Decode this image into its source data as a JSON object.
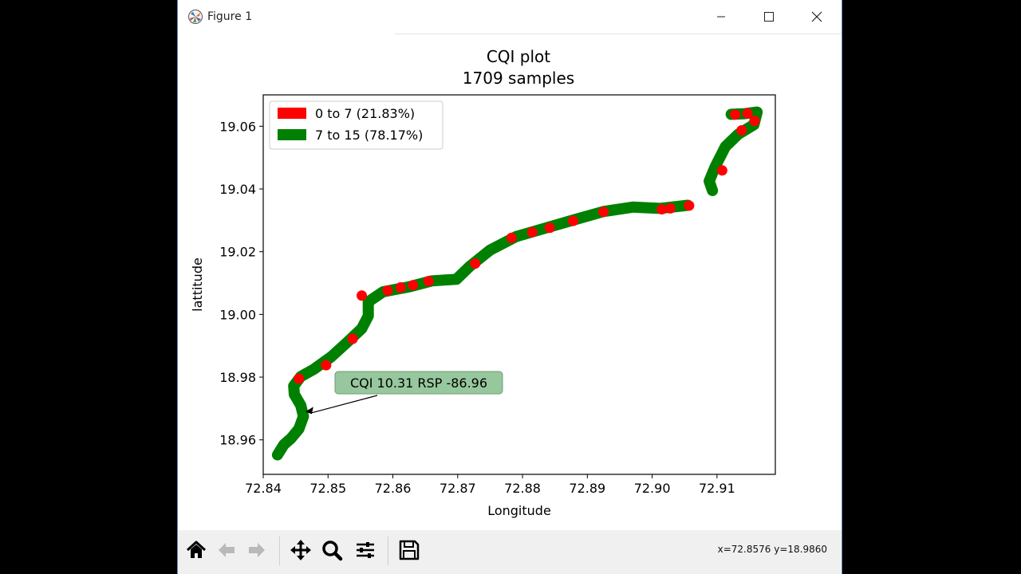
{
  "window": {
    "title": "Figure 1"
  },
  "toolbar": {
    "buttons": [
      {
        "icon": "home-icon"
      },
      {
        "icon": "back-arrow-icon"
      },
      {
        "icon": "forward-arrow-icon"
      },
      {
        "icon": "pan-icon"
      },
      {
        "icon": "zoom-icon"
      },
      {
        "icon": "configure-subplots-icon"
      },
      {
        "icon": "save-icon"
      }
    ],
    "coords": "x=72.8576 y=18.9860"
  },
  "colors": {
    "low": "#ff0000",
    "high": "#008000",
    "annotation_bg": "#97c79c"
  },
  "chart_data": {
    "type": "scatter",
    "title": "CQI plot",
    "subtitle": "1709 samples",
    "xlabel": "Longitude",
    "ylabel": "lattitude",
    "xlim": [
      72.84,
      72.919
    ],
    "ylim": [
      18.949,
      19.07
    ],
    "xticks": [
      "72.84",
      "72.85",
      "72.86",
      "72.87",
      "72.88",
      "72.89",
      "72.90",
      "72.91"
    ],
    "yticks": [
      "18.96",
      "18.98",
      "19.00",
      "19.02",
      "19.04",
      "19.06"
    ],
    "grid": false,
    "legend_position": "top-left",
    "legend": [
      {
        "label": "0 to 7 (21.83%)",
        "color": "#ff0000"
      },
      {
        "label": "7 to 15 (78.17%)",
        "color": "#008000"
      }
    ],
    "annotation": {
      "text": "CQI 10.31 RSP -86.96",
      "target": [
        72.8465,
        18.969
      ]
    },
    "track_segments": [
      [
        [
          72.8422,
          18.9552
        ],
        [
          72.8432,
          18.9585
        ],
        [
          72.8443,
          18.9605
        ],
        [
          72.8455,
          18.9635
        ],
        [
          72.8462,
          18.9675
        ],
        [
          72.8458,
          18.971
        ],
        [
          72.8448,
          18.9745
        ],
        [
          72.8447,
          18.9772
        ],
        [
          72.8458,
          18.9802
        ],
        [
          72.8478,
          18.9825
        ],
        [
          72.8505,
          18.9865
        ],
        [
          72.853,
          18.9912
        ],
        [
          72.8552,
          18.9955
        ],
        [
          72.8562,
          18.9995
        ],
        [
          72.8562,
          19.004
        ],
        [
          72.8585,
          19.0072
        ],
        [
          72.8625,
          19.0088
        ],
        [
          72.866,
          19.0107
        ],
        [
          72.8698,
          19.0112
        ],
        [
          72.8718,
          19.0152
        ],
        [
          72.875,
          19.0205
        ],
        [
          72.879,
          19.0248
        ],
        [
          72.8835,
          19.0275
        ],
        [
          72.888,
          19.0302
        ],
        [
          72.8925,
          19.0328
        ],
        [
          72.897,
          19.0342
        ],
        [
          72.9012,
          19.0338
        ],
        [
          72.9055,
          19.0348
        ]
      ],
      [
        [
          72.9093,
          19.0395
        ],
        [
          72.9088,
          19.0425
        ],
        [
          72.9097,
          19.047
        ],
        [
          72.9113,
          19.0535
        ],
        [
          72.9133,
          19.0575
        ],
        [
          72.9157,
          19.0605
        ],
        [
          72.9162,
          19.0645
        ],
        [
          72.9143,
          19.064
        ],
        [
          72.9122,
          19.0638
        ]
      ]
    ],
    "red_points": [
      [
        72.8455,
        18.9795
      ],
      [
        72.8497,
        18.9838
      ],
      [
        72.8538,
        18.9922
      ],
      [
        72.8552,
        19.006
      ],
      [
        72.8592,
        19.0076
      ],
      [
        72.8612,
        19.0086
      ],
      [
        72.8631,
        19.0093
      ],
      [
        72.8655,
        19.0106
      ],
      [
        72.8727,
        19.0162
      ],
      [
        72.8783,
        19.0244
      ],
      [
        72.8815,
        19.0262
      ],
      [
        72.8842,
        19.0276
      ],
      [
        72.8878,
        19.0298
      ],
      [
        72.8925,
        19.0327
      ],
      [
        72.9015,
        19.0335
      ],
      [
        72.9028,
        19.0338
      ],
      [
        72.9057,
        19.0347
      ],
      [
        72.9108,
        19.0459
      ],
      [
        72.9138,
        19.0587
      ],
      [
        72.9158,
        19.0617
      ],
      [
        72.9147,
        19.0641
      ],
      [
        72.9128,
        19.0637
      ]
    ]
  }
}
